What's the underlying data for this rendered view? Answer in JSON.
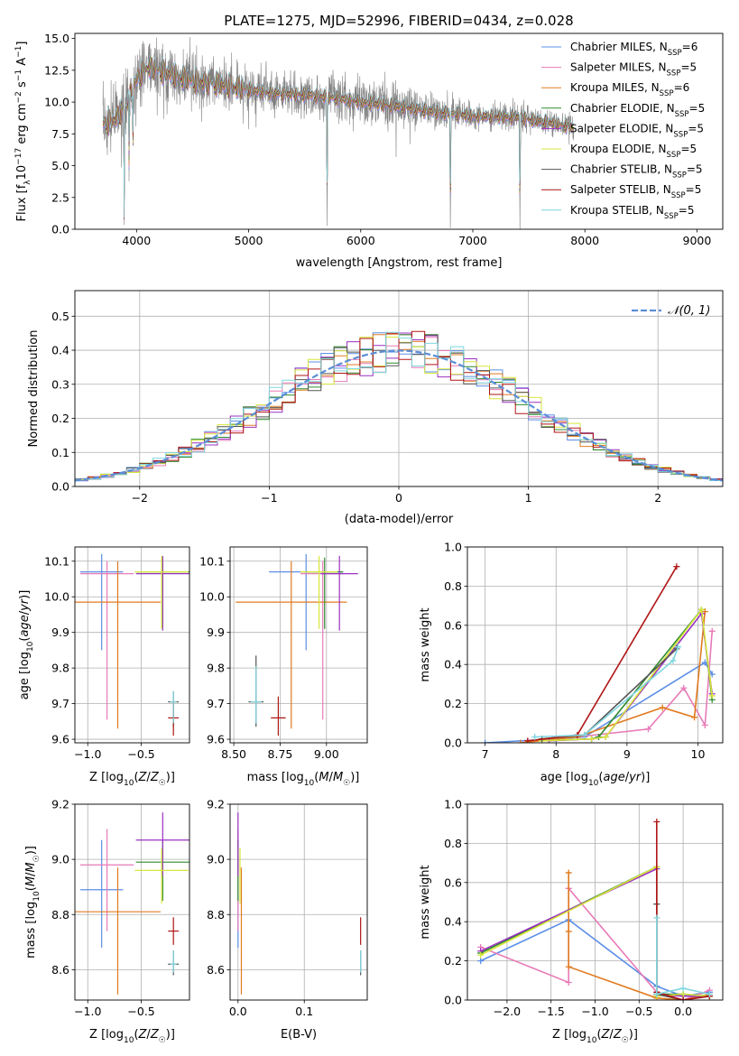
{
  "figure_title": "PLATE=1275, MJD=52996, FIBERID=0434, z=0.028",
  "colors": {
    "Chabrier MILES": "#5b8ee6",
    "Salpeter MILES": "#e87ab8",
    "Kroupa MILES": "#e07b20",
    "Chabrier ELODIE": "#2f8a2f",
    "Salpeter ELODIE": "#9b30c0",
    "Kroupa ELODIE": "#d7e63a",
    "Chabrier STELIB": "#555555",
    "Salpeter STELIB": "#b01515",
    "Kroupa STELIB": "#7fd6df",
    "gaussian": "#5b8ed6",
    "spectrum_data": "#808080"
  },
  "chart_data": [
    {
      "id": "spectrum",
      "type": "line",
      "title": "PLATE=1275, MJD=52996, FIBERID=0434, z=0.028",
      "xlabel": "wavelength [Angstrom, rest frame]",
      "ylabel": "Flux [f_λ 10^-17 erg cm^-2 s^-1 A^-1]",
      "xlim": [
        3450,
        9230
      ],
      "ylim": [
        0,
        15.4
      ],
      "xticks": [
        4000,
        5000,
        6000,
        7000,
        8000,
        9000
      ],
      "yticks": [
        0.0,
        2.5,
        5.0,
        7.5,
        10.0,
        12.5,
        15.0
      ],
      "grid": false,
      "legend_position": "top-right",
      "legend": [
        {
          "model": "Chabrier MILES",
          "n": "6"
        },
        {
          "model": "Salpeter MILES",
          "n": "5"
        },
        {
          "model": "Kroupa MILES",
          "n": "6"
        },
        {
          "model": "Chabrier ELODIE",
          "n": "5"
        },
        {
          "model": "Salpeter ELODIE",
          "n": "5"
        },
        {
          "model": "Kroupa ELODIE",
          "n": "5"
        },
        {
          "model": "Chabrier STELIB",
          "n": "5"
        },
        {
          "model": "Salpeter STELIB",
          "n": "5"
        },
        {
          "model": "Kroupa STELIB",
          "n": "5"
        }
      ],
      "data_range": [
        3700,
        7900
      ],
      "continuum": {
        "wavelength": [
          3700,
          3800,
          3900,
          4000,
          4100,
          4300,
          4500,
          4800,
          5000,
          5200,
          5500,
          5800,
          6000,
          6300,
          6600,
          7000,
          7400,
          7800,
          7900
        ],
        "flux": [
          8.3,
          8.6,
          9.6,
          11.8,
          12.8,
          12.2,
          11.7,
          11.3,
          11.0,
          10.7,
          10.6,
          10.3,
          10.0,
          9.7,
          9.3,
          8.9,
          8.8,
          8.2,
          8.0
        ]
      },
      "absorption_features": [
        {
          "wavelength": 3890,
          "depth": 9.5
        },
        {
          "wavelength": 3934,
          "depth": 5
        },
        {
          "wavelength": 3968,
          "depth": 4
        },
        {
          "wavelength": 5700,
          "depth": 10.5
        },
        {
          "wavelength": 6800,
          "depth": 9.5
        },
        {
          "wavelength": 7420,
          "depth": 9.0
        }
      ]
    },
    {
      "id": "residuals",
      "type": "histogram",
      "xlabel": "(data-model)/error",
      "ylabel": "Normed distribution",
      "xlim": [
        -2.5,
        2.5
      ],
      "ylim": [
        0,
        0.575
      ],
      "xticks": [
        -2,
        -1,
        0,
        1,
        2
      ],
      "yticks": [
        0.0,
        0.1,
        0.2,
        0.3,
        0.4,
        0.5
      ],
      "grid": true,
      "legend_position": "top-right",
      "legend": [
        "𝒩(0, 1)"
      ],
      "bin_width": 0.1,
      "bin_edges_range": [
        -2.5,
        2.5
      ],
      "reference_curve": "standard normal pdf"
    },
    {
      "id": "age-vs-Z",
      "type": "errorbar",
      "xlabel": "Z [log10(Z/Z☉)]",
      "ylabel": "age  [log10(age/yr)]",
      "xlim": [
        -1.12,
        -0.05
      ],
      "ylim": [
        9.59,
        10.14
      ],
      "xticks": [
        -1.0,
        -0.5
      ],
      "yticks": [
        9.6,
        9.7,
        9.8,
        9.9,
        10.0,
        10.1
      ],
      "grid": true,
      "points": [
        {
          "model": "Chabrier MILES",
          "x": -0.87,
          "xerr": 0.2,
          "y": 10.07,
          "yerr": [
            0.22,
            0.05
          ]
        },
        {
          "model": "Salpeter MILES",
          "x": -0.82,
          "xerr": 0.25,
          "y": 10.065,
          "yerr": [
            0.41,
            0.035
          ]
        },
        {
          "model": "Kroupa MILES",
          "x": -0.72,
          "xerr": 0.4,
          "y": 9.985,
          "yerr": [
            0.355,
            0.115
          ]
        },
        {
          "model": "Chabrier ELODIE",
          "x": -0.3,
          "xerr": 0.25,
          "y": 10.07,
          "yerr": [
            0.16,
            0.04
          ]
        },
        {
          "model": "Salpeter ELODIE",
          "x": -0.3,
          "xerr": 0.25,
          "y": 10.065,
          "yerr": [
            0.16,
            0.05
          ]
        },
        {
          "model": "Kroupa ELODIE",
          "x": -0.31,
          "xerr": 0.25,
          "y": 10.07,
          "yerr": [
            0.16,
            0.045
          ]
        },
        {
          "model": "Chabrier STELIB",
          "x": -0.2,
          "xerr": 0.05,
          "y": 9.705,
          "yerr": [
            0.07,
            0.03
          ]
        },
        {
          "model": "Salpeter STELIB",
          "x": -0.2,
          "xerr": 0.05,
          "y": 9.66,
          "yerr": [
            0.05,
            0.05
          ]
        },
        {
          "model": "Kroupa STELIB",
          "x": -0.2,
          "xerr": 0.03,
          "y": 9.705,
          "yerr": [
            0.06,
            0.03
          ]
        }
      ]
    },
    {
      "id": "age-vs-mass",
      "type": "errorbar",
      "xlabel": "mass [log10(M/M☉)]",
      "ylabel": "",
      "xlim": [
        8.48,
        9.22
      ],
      "ylim": [
        9.59,
        10.14
      ],
      "xticks": [
        8.5,
        8.75,
        9.0
      ],
      "yticks": [
        9.6,
        9.7,
        9.8,
        9.9,
        10.0,
        10.1
      ],
      "grid": true,
      "points": [
        {
          "model": "Chabrier MILES",
          "x": 8.89,
          "xerr": 0.2,
          "y": 10.07,
          "yerr": [
            0.22,
            0.05
          ]
        },
        {
          "model": "Salpeter MILES",
          "x": 8.98,
          "xerr": 0.12,
          "y": 10.065,
          "yerr": [
            0.41,
            0.035
          ]
        },
        {
          "model": "Kroupa MILES",
          "x": 8.81,
          "xerr": 0.3,
          "y": 9.985,
          "yerr": [
            0.355,
            0.115
          ]
        },
        {
          "model": "Chabrier ELODIE",
          "x": 8.99,
          "xerr": 0.1,
          "y": 10.07,
          "yerr": [
            0.16,
            0.04
          ]
        },
        {
          "model": "Salpeter ELODIE",
          "x": 9.07,
          "xerr": 0.1,
          "y": 10.065,
          "yerr": [
            0.16,
            0.05
          ]
        },
        {
          "model": "Kroupa ELODIE",
          "x": 8.96,
          "xerr": 0.1,
          "y": 10.07,
          "yerr": [
            0.16,
            0.045
          ]
        },
        {
          "model": "Chabrier STELIB",
          "x": 8.62,
          "xerr": 0.04,
          "y": 9.705,
          "yerr": [
            0.07,
            0.13
          ]
        },
        {
          "model": "Salpeter STELIB",
          "x": 8.74,
          "xerr": 0.04,
          "y": 9.66,
          "yerr": [
            0.05,
            0.06
          ]
        },
        {
          "model": "Kroupa STELIB",
          "x": 8.62,
          "xerr": 0.03,
          "y": 9.705,
          "yerr": [
            0.06,
            0.1
          ]
        }
      ]
    },
    {
      "id": "mass-weight-vs-age",
      "type": "line",
      "xlabel": "age  [log10(age/yr)]",
      "ylabel": "mass weight",
      "xlim": [
        6.75,
        10.35
      ],
      "ylim": [
        0,
        1
      ],
      "xticks": [
        7,
        8,
        9,
        10
      ],
      "yticks": [
        0.0,
        0.2,
        0.4,
        0.6,
        0.8,
        1.0
      ],
      "grid": true,
      "series": [
        {
          "model": "Chabrier MILES",
          "x": [
            7.0,
            8.0,
            8.4,
            10.1,
            10.2
          ],
          "y": [
            0.0,
            0.02,
            0.03,
            0.41,
            0.35
          ]
        },
        {
          "model": "Salpeter MILES",
          "x": [
            7.6,
            8.3,
            9.3,
            9.8,
            10.1,
            10.2
          ],
          "y": [
            0.01,
            0.03,
            0.07,
            0.28,
            0.09,
            0.57
          ]
        },
        {
          "model": "Kroupa MILES",
          "x": [
            7.5,
            8.3,
            9.5,
            9.95,
            10.1
          ],
          "y": [
            0.0,
            0.03,
            0.18,
            0.13,
            0.67
          ]
        },
        {
          "model": "Chabrier ELODIE",
          "x": [
            7.8,
            8.5,
            8.6,
            10.05,
            10.2
          ],
          "y": [
            0.01,
            0.02,
            0.03,
            0.68,
            0.22
          ]
        },
        {
          "model": "Salpeter ELODIE",
          "x": [
            7.9,
            8.5,
            8.7,
            10.05,
            10.2
          ],
          "y": [
            0.01,
            0.02,
            0.03,
            0.66,
            0.25
          ]
        },
        {
          "model": "Kroupa ELODIE",
          "x": [
            7.8,
            8.5,
            8.7,
            10.05,
            10.2
          ],
          "y": [
            0.01,
            0.02,
            0.03,
            0.68,
            0.24
          ]
        },
        {
          "model": "Chabrier STELIB",
          "x": [
            7.8,
            8.4,
            9.7
          ],
          "y": [
            0.02,
            0.04,
            0.48
          ]
        },
        {
          "model": "Salpeter STELIB",
          "x": [
            7.6,
            8.3,
            9.7
          ],
          "y": [
            0.01,
            0.04,
            0.9
          ]
        },
        {
          "model": "Kroupa STELIB",
          "x": [
            7.7,
            8.4,
            9.65,
            9.72
          ],
          "y": [
            0.03,
            0.04,
            0.42,
            0.49
          ]
        }
      ]
    },
    {
      "id": "mass-vs-Z",
      "type": "errorbar",
      "xlabel": "Z [log10(Z/Z☉)]",
      "ylabel": "mass [log10(M/M☉)]",
      "xlim": [
        -1.12,
        -0.05
      ],
      "ylim": [
        8.49,
        9.2
      ],
      "xticks": [
        -1.0,
        -0.5
      ],
      "yticks": [
        8.6,
        8.8,
        9.0,
        9.2
      ],
      "grid": true,
      "points": [
        {
          "model": "Chabrier MILES",
          "x": -0.87,
          "xerr": 0.2,
          "y": 8.89,
          "yerr": [
            0.21,
            0.18
          ]
        },
        {
          "model": "Salpeter MILES",
          "x": -0.82,
          "xerr": 0.25,
          "y": 8.98,
          "yerr": [
            0.24,
            0.13
          ]
        },
        {
          "model": "Kroupa MILES",
          "x": -0.72,
          "xerr": 0.4,
          "y": 8.81,
          "yerr": [
            0.3,
            0.16
          ]
        },
        {
          "model": "Chabrier ELODIE",
          "x": -0.3,
          "xerr": 0.25,
          "y": 8.99,
          "yerr": [
            0.14,
            0.08
          ]
        },
        {
          "model": "Salpeter ELODIE",
          "x": -0.3,
          "xerr": 0.25,
          "y": 9.07,
          "yerr": [
            0.13,
            0.1
          ]
        },
        {
          "model": "Kroupa ELODIE",
          "x": -0.31,
          "xerr": 0.25,
          "y": 8.96,
          "yerr": [
            0.12,
            0.08
          ]
        },
        {
          "model": "Chabrier STELIB",
          "x": -0.2,
          "xerr": 0.05,
          "y": 8.62,
          "yerr": [
            0.04,
            0.05
          ]
        },
        {
          "model": "Salpeter STELIB",
          "x": -0.2,
          "xerr": 0.05,
          "y": 8.74,
          "yerr": [
            0.05,
            0.05
          ]
        },
        {
          "model": "Kroupa STELIB",
          "x": -0.2,
          "xerr": 0.03,
          "y": 8.62,
          "yerr": [
            0.03,
            0.05
          ]
        }
      ]
    },
    {
      "id": "mass-vs-EBV",
      "type": "errorbar",
      "xlabel": "E(B-V)",
      "ylabel": "",
      "xlim": [
        -0.012,
        0.195
      ],
      "ylim": [
        8.49,
        9.2
      ],
      "xticks": [
        0.0,
        0.1
      ],
      "yticks": [
        8.6,
        8.8,
        9.0,
        9.2
      ],
      "grid": true,
      "points": [
        {
          "model": "Chabrier MILES",
          "x": 0.0,
          "xerr": 0,
          "y": 8.89,
          "yerr": [
            0.21,
            0.18
          ]
        },
        {
          "model": "Salpeter MILES",
          "x": 0.0,
          "xerr": 0,
          "y": 8.98,
          "yerr": [
            0.24,
            0.13
          ]
        },
        {
          "model": "Kroupa MILES",
          "x": 0.005,
          "xerr": 0,
          "y": 8.81,
          "yerr": [
            0.3,
            0.16
          ]
        },
        {
          "model": "Chabrier ELODIE",
          "x": 0.0,
          "xerr": 0,
          "y": 8.99,
          "yerr": [
            0.14,
            0.08
          ]
        },
        {
          "model": "Salpeter ELODIE",
          "x": 0.0,
          "xerr": 0,
          "y": 9.07,
          "yerr": [
            0.13,
            0.1
          ]
        },
        {
          "model": "Kroupa ELODIE",
          "x": 0.003,
          "xerr": 0,
          "y": 8.96,
          "yerr": [
            0.12,
            0.08
          ]
        },
        {
          "model": "Chabrier STELIB",
          "x": 0.185,
          "xerr": 0,
          "y": 8.62,
          "yerr": [
            0.04,
            0.05
          ]
        },
        {
          "model": "Salpeter STELIB",
          "x": 0.185,
          "xerr": 0,
          "y": 8.74,
          "yerr": [
            0.05,
            0.05
          ]
        },
        {
          "model": "Kroupa STELIB",
          "x": 0.185,
          "xerr": 0,
          "y": 8.62,
          "yerr": [
            0.03,
            0.05
          ]
        }
      ]
    },
    {
      "id": "mass-weight-vs-Z",
      "type": "line",
      "xlabel": "Z [log10(Z/Z☉)]",
      "ylabel": "mass weight",
      "xlim": [
        -2.45,
        0.45
      ],
      "ylim": [
        0,
        1
      ],
      "xticks": [
        -2.0,
        -1.5,
        -1.0,
        -0.5,
        0.0
      ],
      "yticks": [
        0.0,
        0.2,
        0.4,
        0.6,
        0.8,
        1.0
      ],
      "grid": true,
      "series": [
        {
          "model": "Chabrier MILES",
          "x": [
            -2.3,
            -1.3,
            -0.3,
            0.0,
            0.3
          ],
          "y": [
            0.2,
            0.41,
            0.07,
            0.02,
            0.04
          ]
        },
        {
          "model": "Salpeter MILES",
          "x": [
            -2.3,
            -1.3,
            -1.3,
            -0.3,
            0.0,
            0.3
          ],
          "y": [
            0.27,
            0.09,
            0.57,
            0.04,
            0.0,
            0.05
          ]
        },
        {
          "model": "Kroupa MILES",
          "x": [
            -1.3,
            -1.3,
            -1.3,
            -0.3,
            0.0,
            0.3
          ],
          "y": [
            0.65,
            0.35,
            0.17,
            0.01,
            0.0,
            0.03
          ]
        },
        {
          "model": "Chabrier ELODIE",
          "x": [
            -2.3,
            -0.3,
            -0.3,
            0.0,
            0.3
          ],
          "y": [
            0.24,
            0.68,
            0.03,
            0.03,
            0.02
          ]
        },
        {
          "model": "Salpeter ELODIE",
          "x": [
            -2.3,
            -0.3,
            -0.3,
            0.0,
            0.3
          ],
          "y": [
            0.25,
            0.67,
            0.03,
            0.02,
            0.02
          ]
        },
        {
          "model": "Kroupa ELODIE",
          "x": [
            -2.3,
            -0.3,
            -0.3,
            0.0,
            0.3
          ],
          "y": [
            0.23,
            0.68,
            0.02,
            0.03,
            0.02
          ]
        },
        {
          "model": "Chabrier STELIB",
          "x": [
            -0.3,
            -0.3,
            0.0,
            0.3
          ],
          "y": [
            0.49,
            0.03,
            0.0,
            0.02
          ]
        },
        {
          "model": "Salpeter STELIB",
          "x": [
            -0.3,
            -0.3,
            0.0,
            0.3
          ],
          "y": [
            0.91,
            0.04,
            0.0,
            0.02
          ]
        },
        {
          "model": "Kroupa STELIB",
          "x": [
            -0.3,
            -0.3,
            0.0,
            0.3
          ],
          "y": [
            0.42,
            0.03,
            0.06,
            0.03
          ]
        }
      ]
    }
  ]
}
